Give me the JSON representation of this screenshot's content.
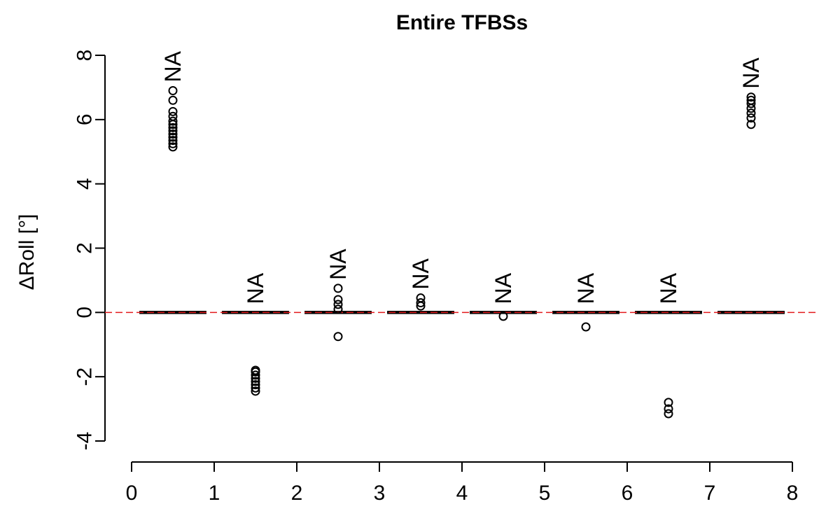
{
  "chart_data": {
    "type": "boxplot",
    "title": "Entire TFBSs",
    "xlabel": "",
    "ylabel": "ΔRoll [°]",
    "xlim": [
      0,
      8
    ],
    "ylim": [
      -4,
      8
    ],
    "x_ticks": [
      "0",
      "1",
      "2",
      "3",
      "4",
      "5",
      "6",
      "7",
      "8"
    ],
    "y_ticks": [
      "-4",
      "-2",
      "0",
      "2",
      "4",
      "6",
      "8"
    ],
    "reference_line": {
      "y": 0,
      "color": "#e31a1c",
      "style": "dashed"
    },
    "box_color": "#000000",
    "groups": [
      {
        "x": 0.5,
        "median": 0,
        "outliers": [
          5.15,
          5.25,
          5.35,
          5.45,
          5.55,
          5.65,
          5.75,
          5.85,
          5.95,
          6.1,
          6.25,
          6.6,
          6.9
        ],
        "annotation": "NA"
      },
      {
        "x": 1.5,
        "median": 0,
        "outliers": [
          -1.8,
          -1.85,
          -1.95,
          -2.05,
          -2.15,
          -2.25,
          -2.35,
          -2.45
        ],
        "annotation": "NA"
      },
      {
        "x": 2.5,
        "median": 0,
        "outliers": [
          0.75,
          0.4,
          0.25,
          0.1,
          -0.75
        ],
        "annotation": "NA"
      },
      {
        "x": 3.5,
        "median": 0,
        "outliers": [
          0.45,
          0.3,
          0.2
        ],
        "annotation": "NA"
      },
      {
        "x": 4.5,
        "median": 0,
        "outliers": [
          -0.12
        ],
        "annotation": "NA"
      },
      {
        "x": 5.5,
        "median": 0,
        "outliers": [
          -0.45
        ],
        "annotation": "NA"
      },
      {
        "x": 6.5,
        "median": 0,
        "outliers": [
          -2.8,
          -3.0,
          -3.15
        ],
        "annotation": "NA"
      },
      {
        "x": 7.5,
        "median": 0,
        "outliers": [
          5.85,
          6.05,
          6.2,
          6.35,
          6.5,
          6.6,
          6.7
        ],
        "annotation": "NA"
      }
    ]
  }
}
